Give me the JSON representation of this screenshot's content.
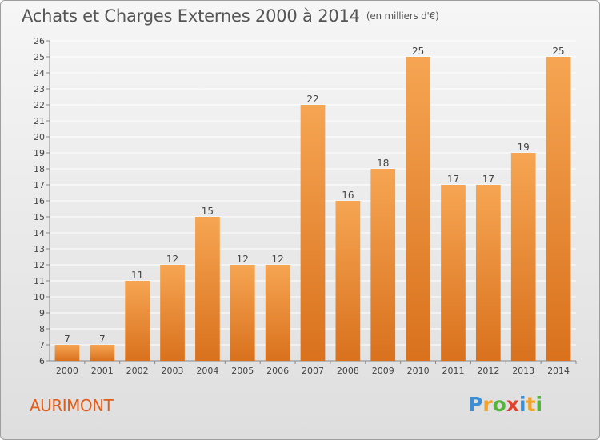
{
  "title": "Achats et Charges Externes 2000 à 2014",
  "unit": "(en milliers d'€)",
  "commune": "AURIMONT",
  "logo": {
    "text": "Proxiti",
    "colors": [
      "#3a8fd6",
      "#f2a329",
      "#58b33c",
      "#e0402e",
      "#3a8fd6",
      "#f2a329",
      "#58b33c"
    ]
  },
  "colors": {
    "bar_top": "#f6a552",
    "bar_bottom": "#d9711d",
    "grid": "#ffffff",
    "axis": "#888888",
    "text": "#444444"
  },
  "chart_data": {
    "type": "bar",
    "categories": [
      "2000",
      "2001",
      "2002",
      "2003",
      "2004",
      "2005",
      "2006",
      "2007",
      "2008",
      "2009",
      "2010",
      "2011",
      "2012",
      "2013",
      "2014"
    ],
    "values": [
      7,
      7,
      11,
      12,
      15,
      12,
      12,
      22,
      16,
      18,
      25,
      17,
      17,
      19,
      25
    ],
    "yticks": [
      6,
      7,
      8,
      9,
      10,
      11,
      12,
      13,
      14,
      15,
      16,
      17,
      18,
      19,
      20,
      21,
      22,
      23,
      24,
      25,
      26
    ],
    "ylim": [
      6,
      26
    ],
    "grid": true,
    "data_labels": true,
    "title": "Achats et Charges Externes 2000 à 2014",
    "xlabel": "",
    "ylabel": ""
  }
}
